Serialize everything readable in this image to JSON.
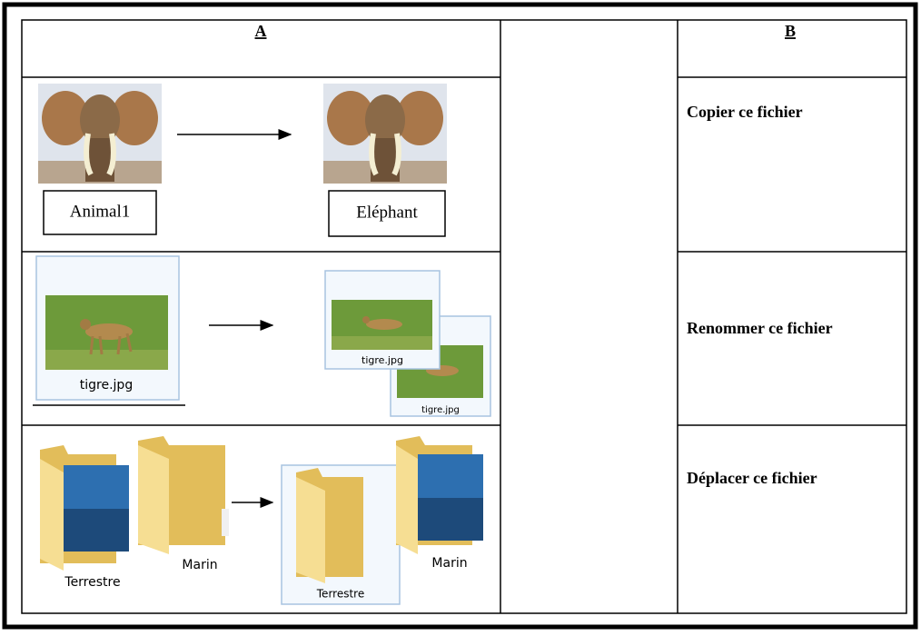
{
  "table": {
    "headers": [
      "A",
      "B"
    ],
    "rows": [
      {
        "from": [
          "Animal1"
        ],
        "to": [
          "Eléphant"
        ],
        "action": "Copier ce fichier"
      },
      {
        "from": [
          "tigre.jpg"
        ],
        "to": [
          "tigre.jpg",
          "tigre.jpg"
        ],
        "action": "Renommer ce fichier"
      },
      {
        "from": [
          "Terrestre",
          "Marin"
        ],
        "to": [
          "Terrestre",
          "Marin"
        ],
        "action": "Déplacer ce fichier"
      }
    ]
  }
}
